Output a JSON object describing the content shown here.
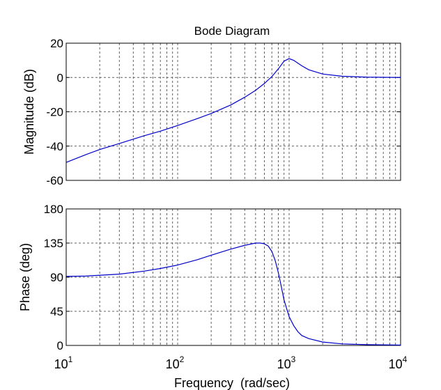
{
  "title": "Bode Diagram",
  "colors": {
    "curve": "#0000cc",
    "grid": "#606060",
    "axis": "#000000",
    "background": "#ffffff"
  },
  "chart_data": [
    {
      "type": "line",
      "panel": "magnitude",
      "title": "Bode Diagram",
      "xlabel": "",
      "ylabel": "Magnitude (dB)",
      "xscale": "log",
      "xlim": [
        10,
        10000
      ],
      "ylim": [
        -60,
        20
      ],
      "yticks": [
        "20",
        "0",
        "-20",
        "-40",
        "-60"
      ],
      "grid": true,
      "series": [
        {
          "x": [
            10,
            15,
            20,
            30,
            50,
            70,
            100,
            150,
            200,
            300,
            400,
            500,
            600,
            700,
            800,
            900,
            1000,
            1100,
            1300,
            1500,
            2000,
            3000,
            5000,
            7000,
            10000
          ],
          "y": [
            -49.5,
            -45,
            -42,
            -38.5,
            -34,
            -31.3,
            -28,
            -24,
            -21,
            -16,
            -11.5,
            -7.5,
            -3.5,
            0.5,
            5,
            9.5,
            11,
            10,
            6.8,
            4.5,
            2,
            0.7,
            0.2,
            0.1,
            0
          ]
        }
      ]
    },
    {
      "type": "line",
      "panel": "phase",
      "xlabel": "Frequency  (rad/sec)",
      "ylabel": "Phase (deg)",
      "xscale": "log",
      "xlim": [
        10,
        10000
      ],
      "ylim": [
        0,
        180
      ],
      "yticks": [
        "180",
        "135",
        "90",
        "45",
        "0"
      ],
      "xticks": [
        {
          "base": "10",
          "exp": "1"
        },
        {
          "base": "10",
          "exp": "2"
        },
        {
          "base": "10",
          "exp": "3"
        },
        {
          "base": "10",
          "exp": "4"
        }
      ],
      "grid": true,
      "series": [
        {
          "x": [
            10,
            15,
            20,
            30,
            50,
            70,
            100,
            150,
            200,
            300,
            400,
            500,
            550,
            600,
            650,
            700,
            750,
            800,
            850,
            900,
            1000,
            1100,
            1200,
            1300,
            1500,
            2000,
            3000,
            5000,
            10000
          ],
          "y": [
            91,
            91.5,
            92.5,
            94,
            98,
            101.5,
            106,
            113,
            119,
            127,
            132,
            135,
            135,
            134,
            131,
            124,
            112,
            96,
            78,
            60,
            38,
            26,
            18,
            13,
            9,
            4.5,
            2,
            1,
            0.5
          ]
        }
      ]
    }
  ]
}
